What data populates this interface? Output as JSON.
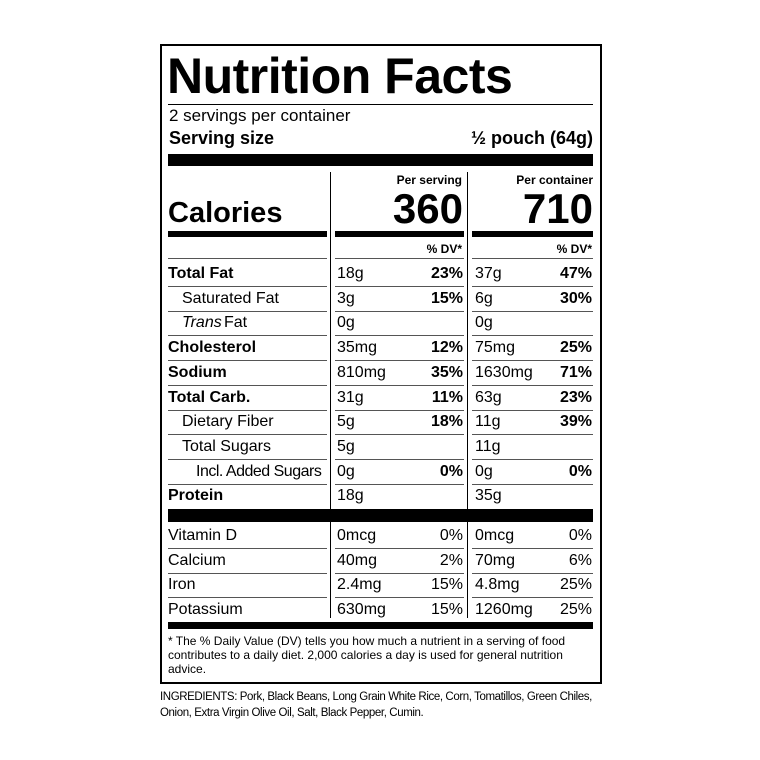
{
  "header": {
    "title": "Nutrition Facts",
    "servings": "2 servings per container",
    "serving_size_label": "Serving size",
    "serving_size": "½ pouch (64g)"
  },
  "calories": {
    "label": "Calories",
    "per_serving_label": "Per serving",
    "per_container_label": "Per container",
    "per_serving": "360",
    "per_container": "710"
  },
  "table": {
    "dv_header": "% DV*",
    "nutrients": [
      {
        "label": "Total Fat",
        "serving": "18g",
        "serving_dv": "23%",
        "container": "37g",
        "container_dv": "47%"
      },
      {
        "label": "Saturated Fat",
        "serving": "3g",
        "serving_dv": "15%",
        "container": "6g",
        "container_dv": "30%"
      },
      {
        "label_italic": "Trans",
        "label": "Fat",
        "serving": "0g",
        "container": "0g"
      },
      {
        "label": "Cholesterol",
        "serving": "35mg",
        "serving_dv": "12%",
        "container": "75mg",
        "container_dv": "25%"
      },
      {
        "label": "Sodium",
        "serving": "810mg",
        "serving_dv": "35%",
        "container": "1630mg",
        "container_dv": "71%"
      },
      {
        "label": "Total Carb.",
        "serving": "31g",
        "serving_dv": "11%",
        "container": "63g",
        "container_dv": "23%"
      },
      {
        "label": "Dietary Fiber",
        "serving": "5g",
        "serving_dv": "18%",
        "container": "11g",
        "container_dv": "39%"
      },
      {
        "label": "Total Sugars",
        "serving": "5g",
        "container": "11g"
      },
      {
        "label": "Incl. Added Sugars",
        "serving": "0g",
        "serving_dv": "0%",
        "container": "0g",
        "container_dv": "0%"
      },
      {
        "label": "Protein",
        "serving": "18g",
        "container": "35g"
      }
    ],
    "vitamins": [
      {
        "label": "Vitamin D",
        "serving": "0mcg",
        "serving_dv": "0%",
        "container": "0mcg",
        "container_dv": "0%"
      },
      {
        "label": "Calcium",
        "serving": "40mg",
        "serving_dv": "2%",
        "container": "70mg",
        "container_dv": "6%"
      },
      {
        "label": "Iron",
        "serving": "2.4mg",
        "serving_dv": "15%",
        "container": "4.8mg",
        "container_dv": "25%"
      },
      {
        "label": "Potassium",
        "serving": "630mg",
        "serving_dv": "15%",
        "container": "1260mg",
        "container_dv": "25%"
      }
    ]
  },
  "footnote": "* The % Daily Value (DV) tells you how much a nutrient in a serving of food contributes to a daily diet. 2,000 calories a day is used for general nutrition advice.",
  "ingredients": "INGREDIENTS: Pork, Black Beans, Long Grain White Rice, Corn, Tomatillos, Green Chiles, Onion, Extra Virgin Olive Oil, Salt, Black Pepper, Cumin."
}
